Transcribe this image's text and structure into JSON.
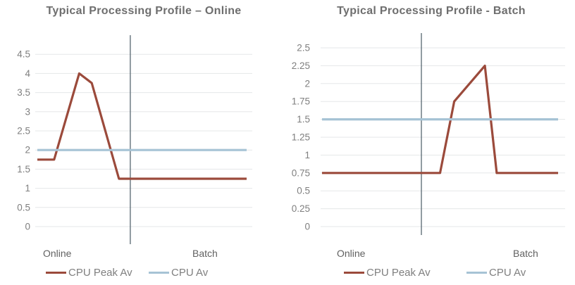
{
  "page": {
    "background": "#ffffff"
  },
  "theme": {
    "grid_color": "#e5e7e8",
    "divider_color": "#566670",
    "title_color": "#6e6e6e",
    "tick_color": "#7f7f7f",
    "phase_label_color": "#616161",
    "legend_text_color": "#7f7f7f",
    "peak_line_color": "#9b4a3b",
    "avg_line_color": "#a6c3d5"
  },
  "chart_data": [
    {
      "type": "line",
      "title": "Typical Processing Profile – Online",
      "phase_labels": [
        "Online",
        "Batch"
      ],
      "divider_pct": 43.8,
      "yticks": [
        0,
        0.5,
        1,
        1.5,
        2,
        2.5,
        3,
        3.5,
        4,
        4.5
      ],
      "ylim": [
        0,
        5
      ],
      "grid": true,
      "legend_position": "bottom",
      "x_axis": "percent of timeline (Online phase then Batch phase, divider marks boundary)",
      "series": [
        {
          "name": "CPU Peak Av",
          "color": "#9b4a3b",
          "points": [
            [
              0,
              1.75
            ],
            [
              8,
              1.75
            ],
            [
              20,
              4.0
            ],
            [
              26,
              3.75
            ],
            [
              39,
              1.25
            ],
            [
              100,
              1.25
            ]
          ]
        },
        {
          "name": "CPU Av",
          "color": "#a6c3d5",
          "points": [
            [
              0,
              2.0
            ],
            [
              100,
              2.0
            ]
          ]
        }
      ]
    },
    {
      "type": "line",
      "title": "Typical Processing Profile - Batch",
      "phase_labels": [
        "Online",
        "Batch"
      ],
      "divider_pct": 41.2,
      "yticks": [
        0,
        0.25,
        0.5,
        0.75,
        1,
        1.25,
        1.5,
        1.75,
        2,
        2.25,
        2.5
      ],
      "ylim": [
        0,
        2.7
      ],
      "grid": true,
      "legend_position": "bottom",
      "x_axis": "percent of timeline (Online phase then Batch phase, divider marks boundary)",
      "series": [
        {
          "name": "CPU Peak Av",
          "color": "#9b4a3b",
          "points": [
            [
              0,
              0.75
            ],
            [
              50,
              0.75
            ],
            [
              56,
              1.75
            ],
            [
              69,
              2.25
            ],
            [
              74,
              0.75
            ],
            [
              100,
              0.75
            ]
          ]
        },
        {
          "name": "CPU Av",
          "color": "#a6c3d5",
          "points": [
            [
              0,
              1.5
            ],
            [
              100,
              1.5
            ]
          ]
        }
      ]
    }
  ]
}
